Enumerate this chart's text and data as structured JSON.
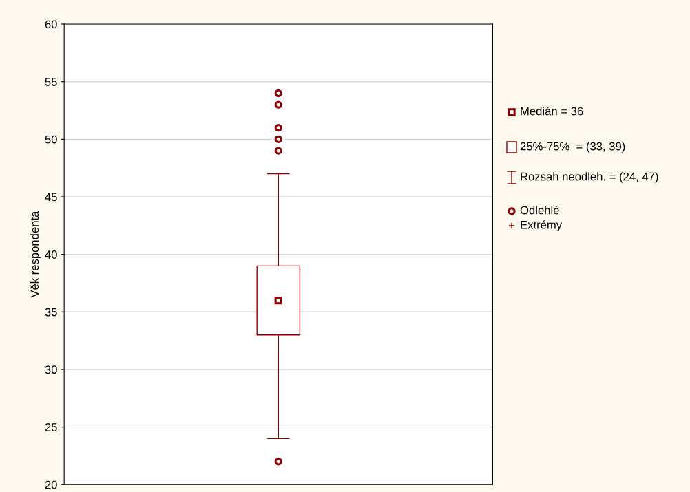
{
  "chart_data": {
    "type": "box",
    "ylabel": "Věk respondenta",
    "categories": [
      null
    ],
    "boxes": [
      {
        "low": 24,
        "q1": 33,
        "median": 36,
        "q3": 39,
        "high": 47,
        "outliers": [
          22,
          49,
          50,
          51,
          53,
          54
        ]
      }
    ],
    "color": "#8b0000",
    "ylim": [
      20,
      60
    ],
    "yticks": [
      20,
      25,
      30,
      35,
      40,
      45,
      50,
      55,
      60
    ],
    "grid": "y",
    "marker": "square",
    "annotations": [
      "Medián = 36",
      "25%-75%  = (33, 39)",
      "Rozsah neodleh. = (24, 47)",
      "Odlehlé",
      "Extrémy"
    ]
  }
}
